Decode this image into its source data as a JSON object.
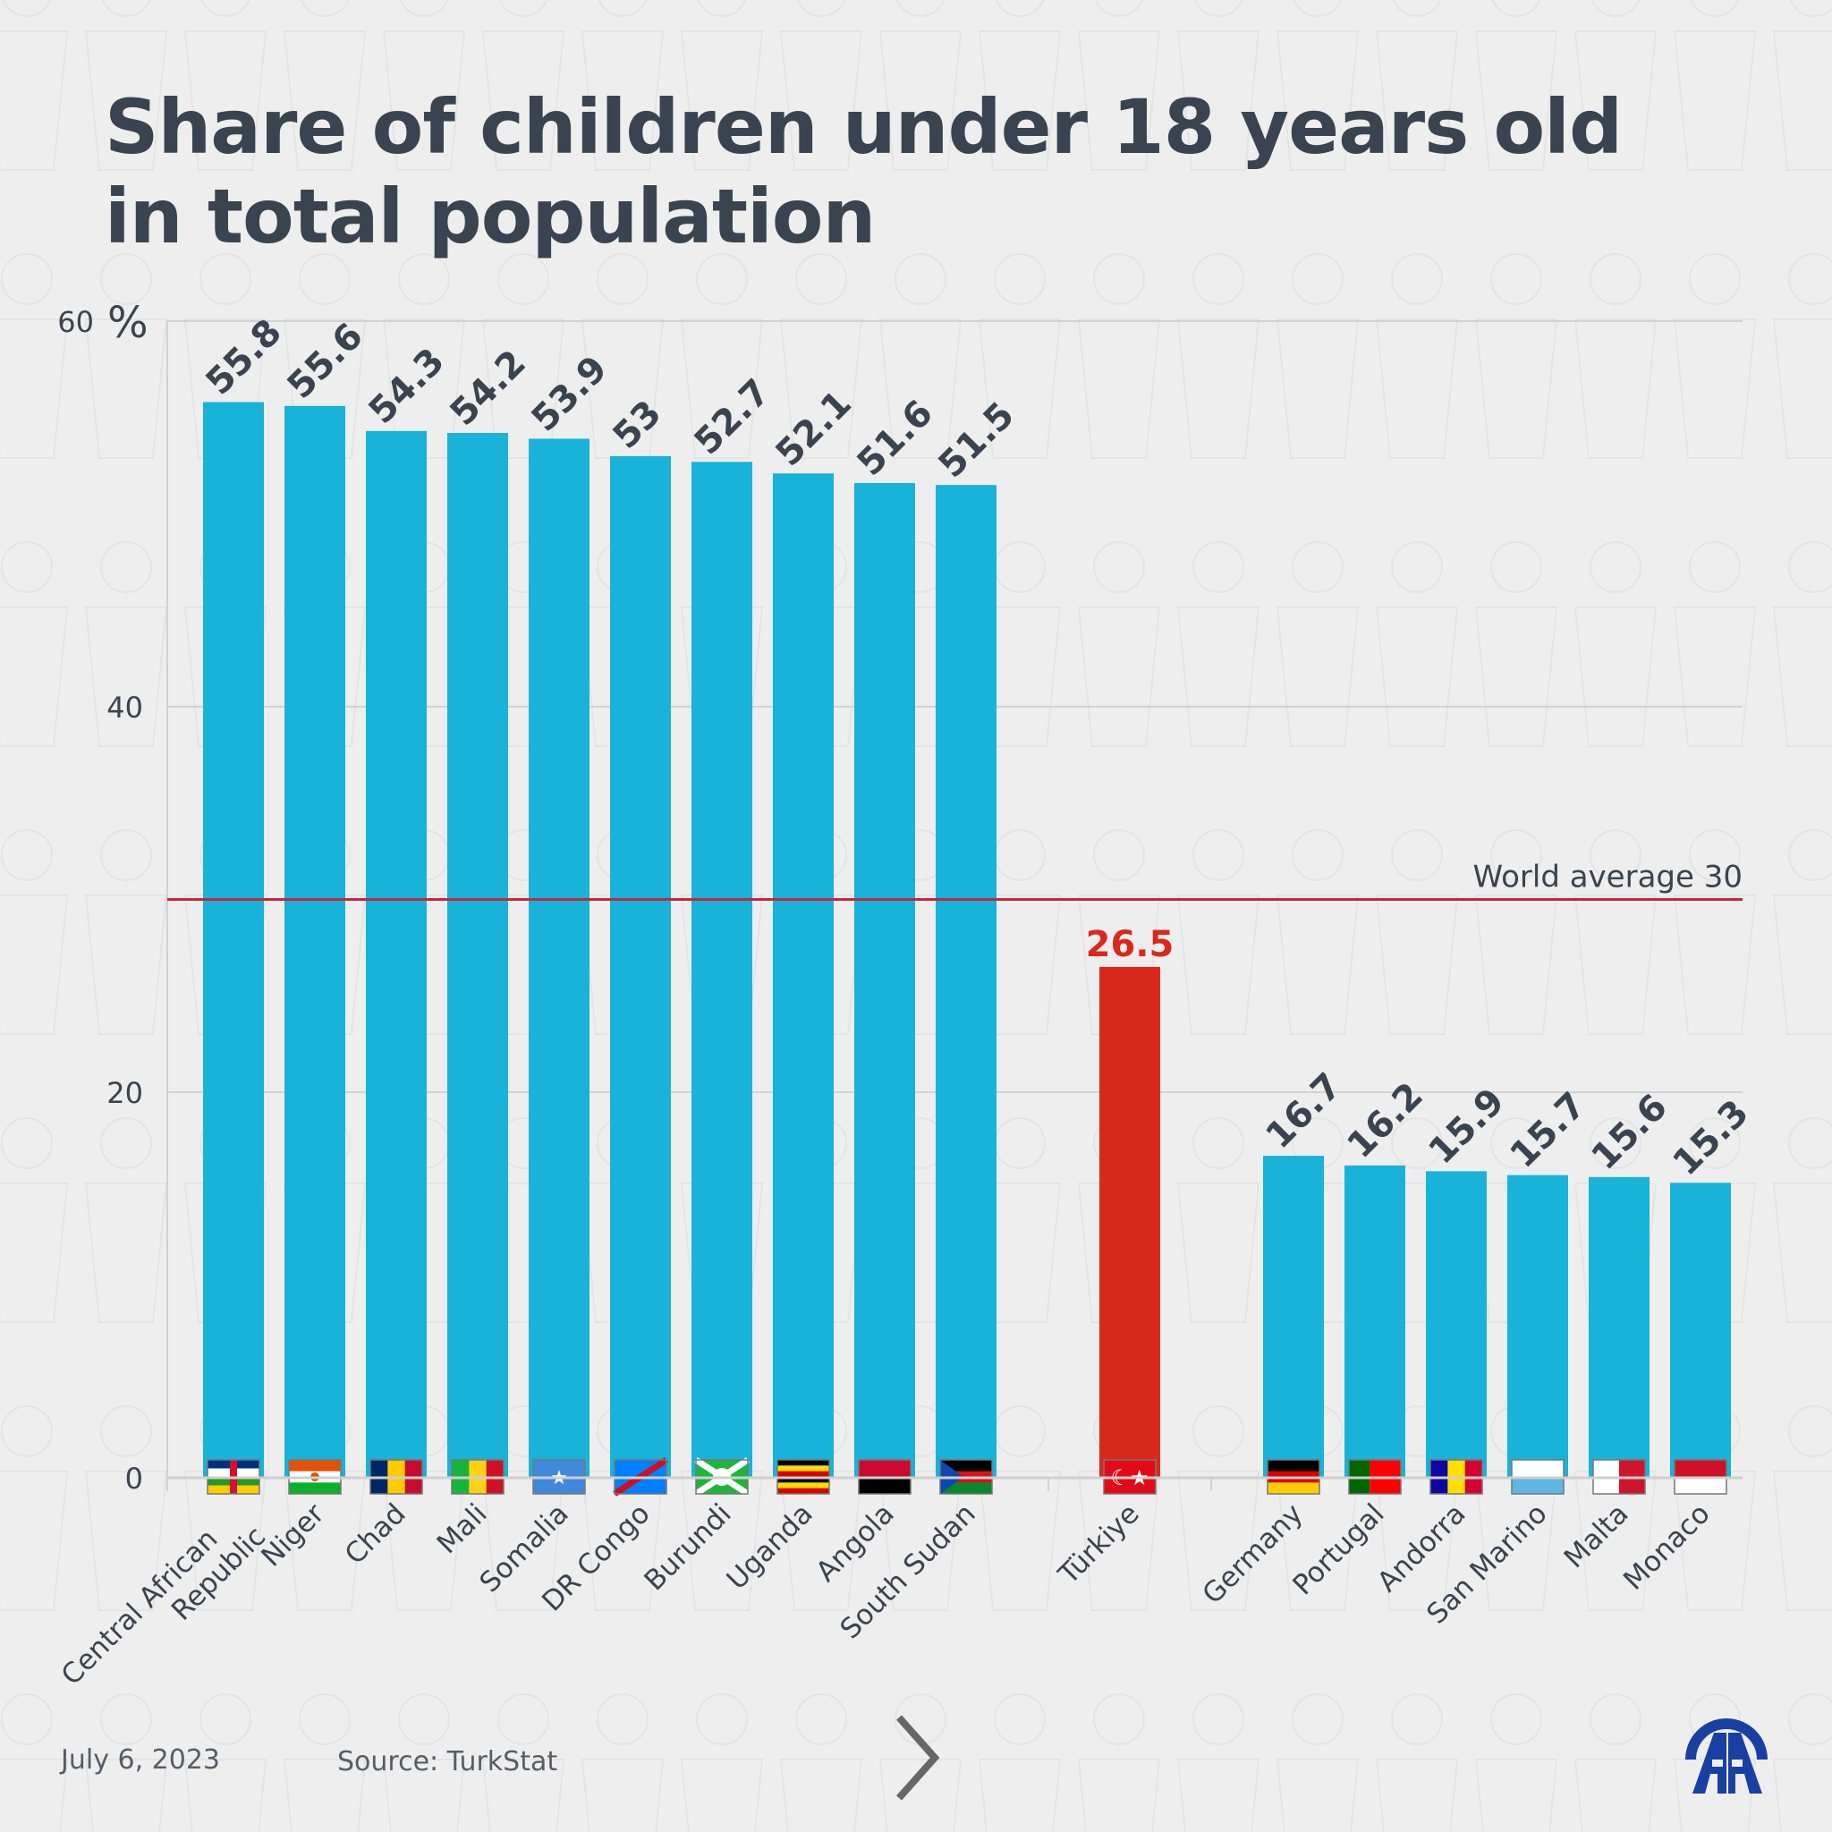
{
  "title_line1": "Share of children under 18 years old",
  "title_line2": "in total population",
  "footer": {
    "date": "July 6, 2023",
    "source": "Source: TurkStat"
  },
  "logo_text": "AA",
  "colors": {
    "bar": "#19b2d9",
    "highlight": "#d9291c",
    "average_line": "#c0283c",
    "text": "#3a4450",
    "logo": "#1a3fa3"
  },
  "chart_data": {
    "type": "bar",
    "title": "Share of children under 18 years old in total population",
    "ylabel": "%",
    "ylim": [
      0,
      60
    ],
    "yticks": [
      0,
      20,
      40,
      60
    ],
    "ytick_labels": [
      "0",
      "20",
      "40",
      "60"
    ],
    "y_unit": "%",
    "grid": true,
    "highlight": "Türkiye",
    "reference_line": {
      "label": "World average 30",
      "value": 30
    },
    "groups": [
      {
        "categories": [
          "Central African Republic",
          "Niger",
          "Chad",
          "Mali",
          "Somalia",
          "DR Congo",
          "Burundi",
          "Uganda",
          "Angola",
          "South Sudan"
        ],
        "values": [
          55.8,
          55.6,
          54.3,
          54.2,
          53.9,
          53,
          52.7,
          52.1,
          51.6,
          51.5
        ]
      },
      {
        "categories": [
          "Türkiye"
        ],
        "values": [
          26.5
        ]
      },
      {
        "categories": [
          "Germany",
          "Portugal",
          "Andorra",
          "San Marino",
          "Malta",
          "Monaco"
        ],
        "values": [
          16.7,
          16.2,
          15.9,
          15.7,
          15.6,
          15.3
        ]
      }
    ]
  }
}
